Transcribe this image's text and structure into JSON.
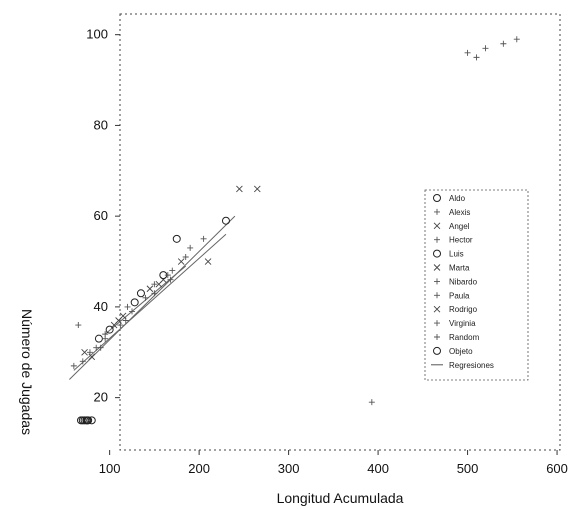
{
  "chart_data": {
    "type": "scatter",
    "xlabel": "Longitud Acumulada",
    "ylabel": "Número de Jugadas",
    "xlim": [
      30,
      610
    ],
    "ylim": [
      10,
      105
    ],
    "x_ticks": [
      100,
      200,
      300,
      400,
      500,
      600
    ],
    "y_ticks": [
      20,
      40,
      60,
      80,
      100
    ],
    "legend_position": "right",
    "legend": [
      "Aldo",
      "Alexis",
      "Angel",
      "Hector",
      "Luis",
      "Marta",
      "Nibardo",
      "Paula",
      "Rodrigo",
      "Virginia",
      "Random",
      "Objeto",
      "Regresiones"
    ],
    "series": [
      {
        "name": "Aldo",
        "marker": "circle",
        "points": [
          [
            88,
            33
          ],
          [
            128,
            41
          ],
          [
            175,
            55
          ],
          [
            230,
            59
          ],
          [
            68,
            15
          ],
          [
            75,
            15
          ]
        ]
      },
      {
        "name": "Alexis",
        "marker": "plus",
        "points": [
          [
            70,
            28
          ],
          [
            95,
            34
          ],
          [
            120,
            40
          ],
          [
            150,
            45
          ],
          [
            185,
            51
          ],
          [
            205,
            55
          ]
        ]
      },
      {
        "name": "Angel",
        "marker": "cross",
        "points": [
          [
            72,
            30
          ],
          [
            110,
            37
          ],
          [
            160,
            46
          ],
          [
            210,
            50
          ],
          [
            245,
            66
          ],
          [
            265,
            66
          ]
        ]
      },
      {
        "name": "Hector",
        "marker": "plus",
        "points": [
          [
            90,
            31
          ],
          [
            140,
            42
          ],
          [
            170,
            48
          ],
          [
            190,
            53
          ]
        ]
      },
      {
        "name": "Luis",
        "marker": "circle",
        "points": [
          [
            100,
            35
          ],
          [
            135,
            43
          ],
          [
            160,
            47
          ]
        ]
      },
      {
        "name": "Marta",
        "marker": "cross",
        "points": [
          [
            80,
            29
          ],
          [
            115,
            38
          ],
          [
            145,
            44
          ]
        ]
      },
      {
        "name": "Nibardo",
        "marker": "plus",
        "points": [
          [
            95,
            33
          ],
          [
            125,
            39
          ],
          [
            165,
            47
          ]
        ]
      },
      {
        "name": "Paula",
        "marker": "plus",
        "points": [
          [
            85,
            31
          ],
          [
            118,
            37
          ],
          [
            150,
            43
          ]
        ]
      },
      {
        "name": "Rodrigo",
        "marker": "cross",
        "points": [
          [
            105,
            36
          ],
          [
            155,
            45
          ],
          [
            180,
            50
          ]
        ]
      },
      {
        "name": "Virginia",
        "marker": "plus",
        "points": [
          [
            78,
            30
          ],
          [
            112,
            36
          ],
          [
            168,
            46
          ]
        ]
      },
      {
        "name": "Random",
        "marker": "plus",
        "points": [
          [
            510,
            95
          ],
          [
            520,
            97
          ],
          [
            540,
            98
          ],
          [
            555,
            99
          ],
          [
            500,
            96
          ],
          [
            393,
            19
          ],
          [
            60,
            27
          ],
          [
            65,
            36
          ]
        ]
      },
      {
        "name": "Objeto",
        "marker": "circle",
        "points": [
          [
            70,
            15
          ],
          [
            72,
            15
          ],
          [
            74,
            15
          ],
          [
            76,
            15
          ],
          [
            80,
            15
          ]
        ]
      }
    ],
    "regressions": [
      {
        "from": [
          55,
          24
        ],
        "to": [
          240,
          60
        ]
      },
      {
        "from": [
          60,
          26
        ],
        "to": [
          230,
          56
        ]
      },
      {
        "from": [
          95,
          34
        ],
        "to": [
          185,
          49
        ]
      }
    ]
  }
}
